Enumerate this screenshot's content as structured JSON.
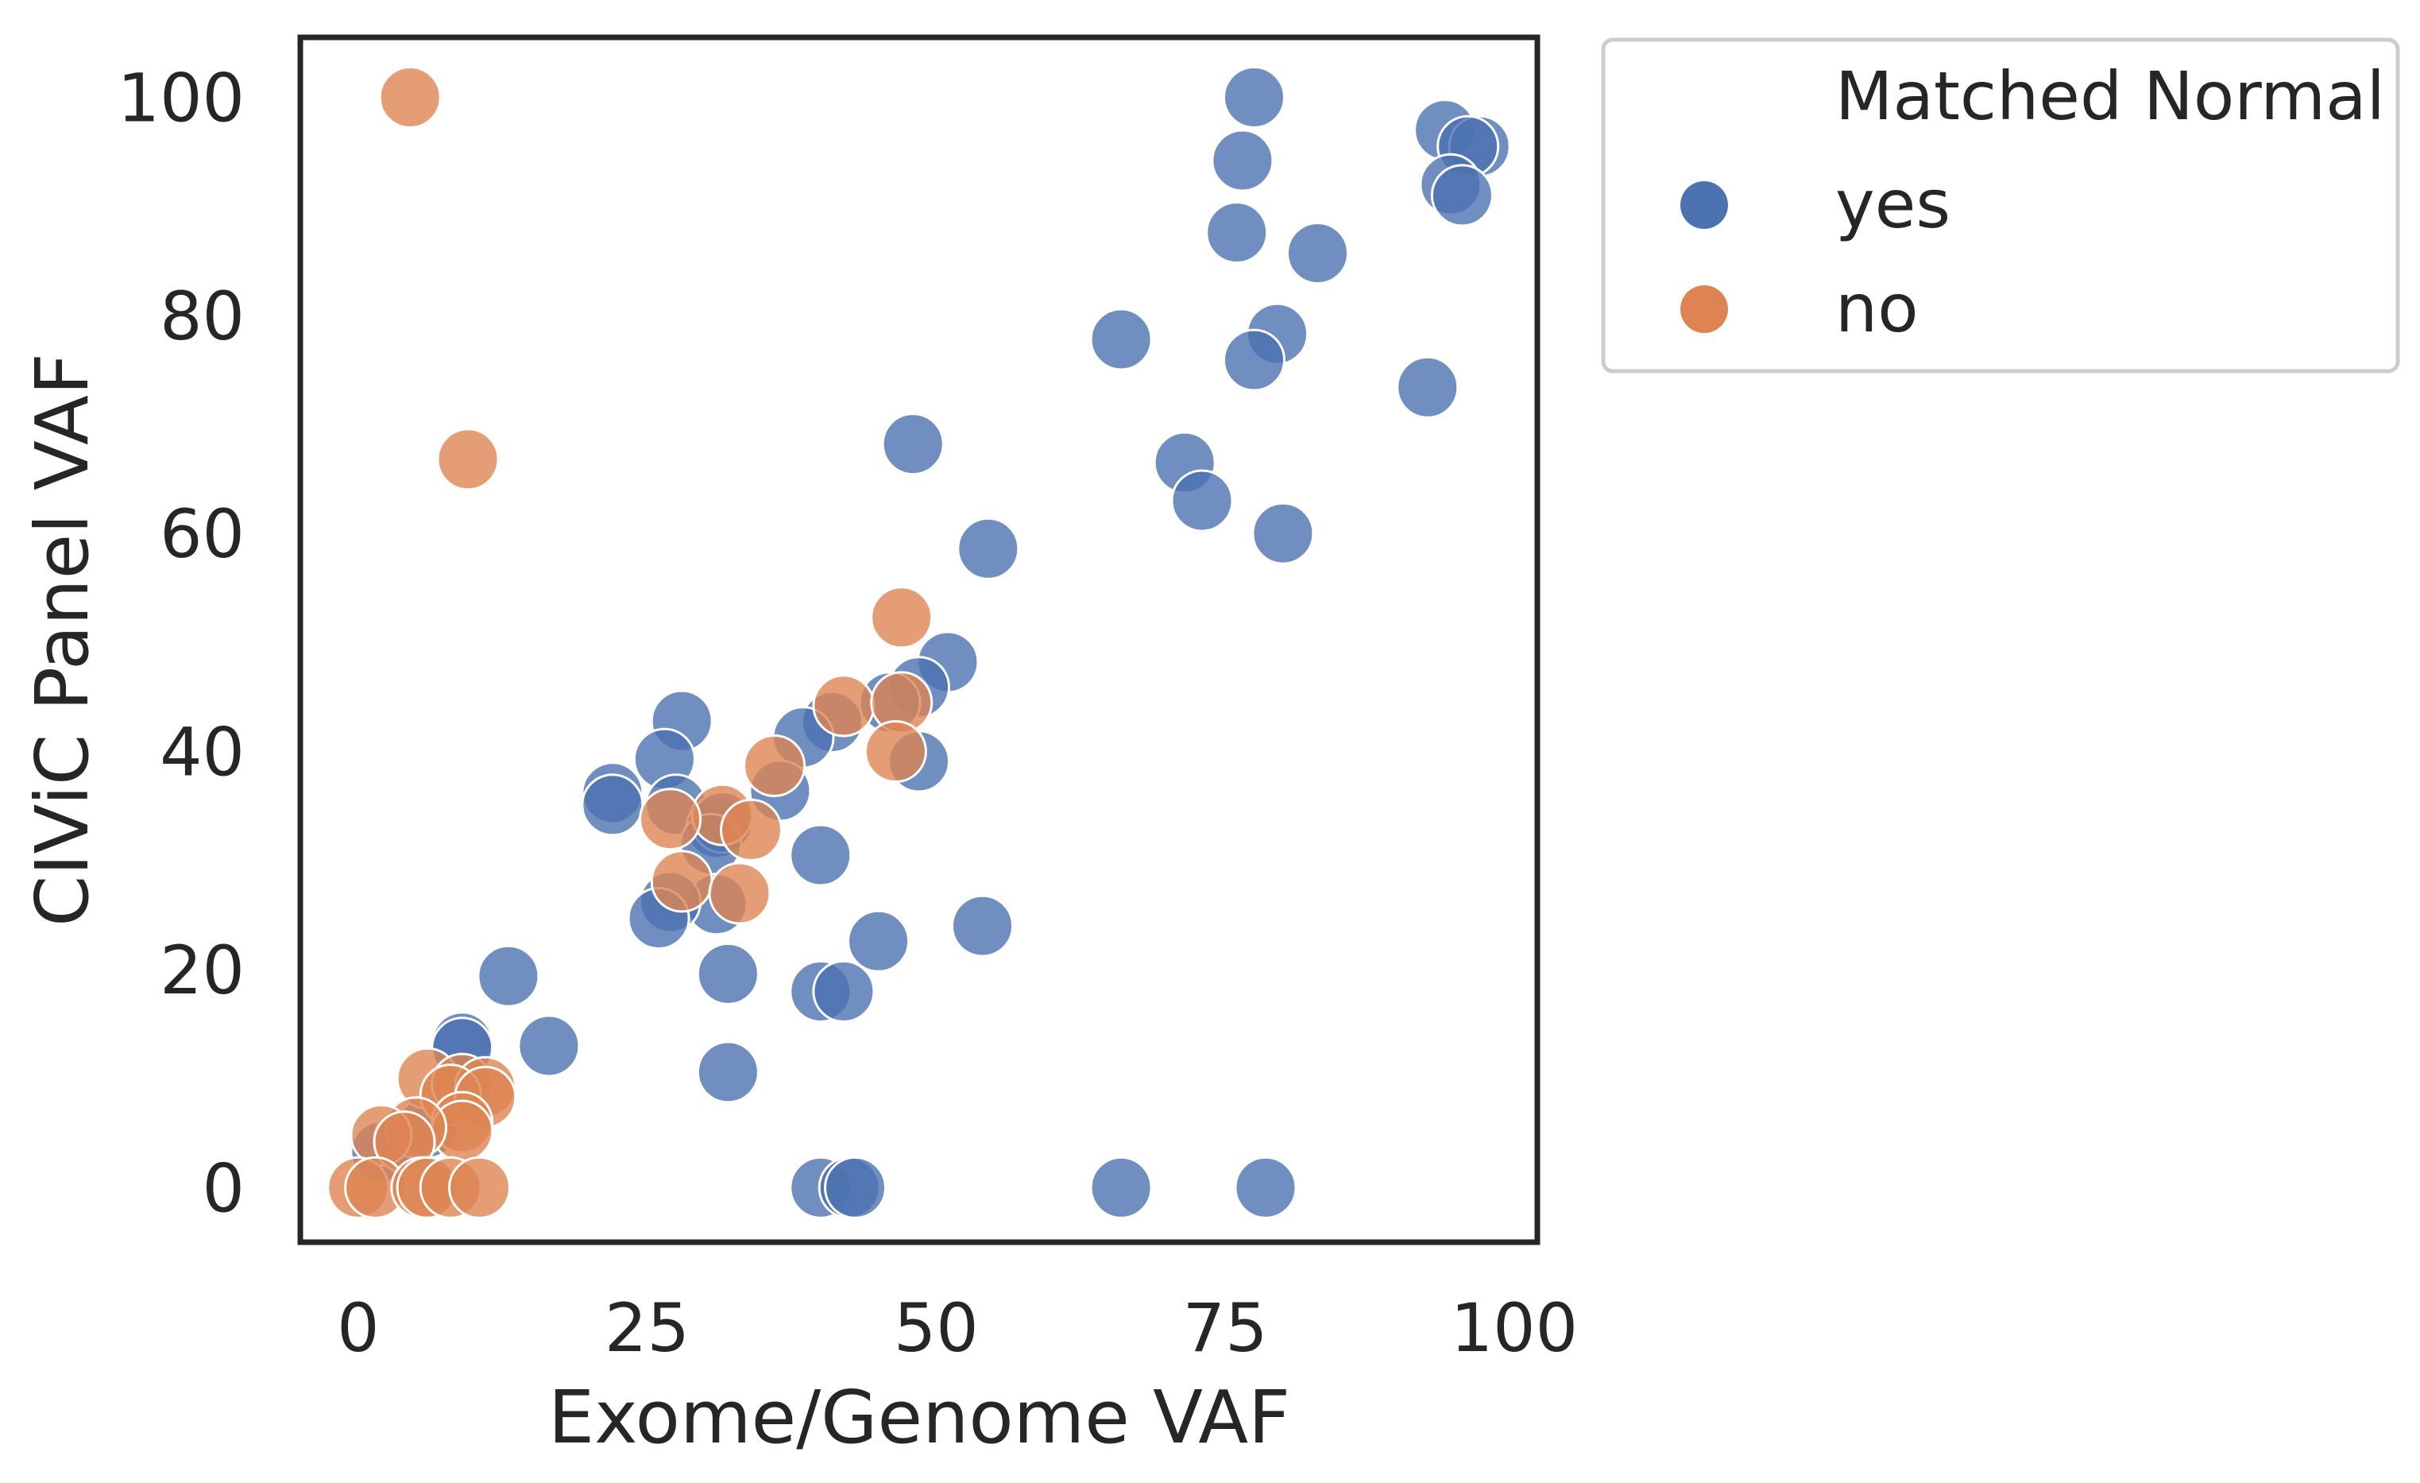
{
  "chart_data": {
    "type": "scatter",
    "title": "",
    "xlabel": "Exome/Genome VAF",
    "ylabel": "CIViC Panel VAF",
    "xlim": [
      -5,
      102
    ],
    "ylim": [
      -5,
      105.5
    ],
    "xticks": [
      0,
      25,
      50,
      75,
      100
    ],
    "yticks": [
      0,
      20,
      40,
      60,
      80,
      100
    ],
    "xtick_labels": [
      "0",
      "25",
      "50",
      "75",
      "100"
    ],
    "ytick_labels": [
      "0",
      "20",
      "40",
      "60",
      "80",
      "100"
    ],
    "grid": false,
    "legend": {
      "title": "Matched Normal",
      "placement": "outside top-right",
      "entries": [
        {
          "label": "yes",
          "color": "#4c72b0"
        },
        {
          "label": "no",
          "color": "#dd8452"
        }
      ]
    },
    "series": [
      {
        "name": "yes",
        "color": "#4c72b0",
        "points": [
          [
            77.5,
            100
          ],
          [
            94,
            97
          ],
          [
            97,
            95.5
          ],
          [
            96,
            95.5
          ],
          [
            76.5,
            94.2
          ],
          [
            94.5,
            92
          ],
          [
            95.5,
            91
          ],
          [
            76,
            87.6
          ],
          [
            83,
            85.7
          ],
          [
            79.5,
            78.3
          ],
          [
            66,
            77.8
          ],
          [
            77.5,
            75.9
          ],
          [
            92.5,
            73.4
          ],
          [
            48,
            68.2
          ],
          [
            71.5,
            66.5
          ],
          [
            73,
            63
          ],
          [
            80,
            60
          ],
          [
            54.5,
            58.6
          ],
          [
            51,
            48.2
          ],
          [
            48.5,
            45.9
          ],
          [
            46,
            44.5
          ],
          [
            28,
            42.8
          ],
          [
            41,
            42.7
          ],
          [
            38.5,
            41.3
          ],
          [
            26.5,
            39.3
          ],
          [
            48.5,
            39.1
          ],
          [
            36.5,
            36.4
          ],
          [
            22,
            36.2
          ],
          [
            22,
            35.1
          ],
          [
            27.5,
            35.1
          ],
          [
            31,
            33
          ],
          [
            31.5,
            33.5
          ],
          [
            30.5,
            31.5
          ],
          [
            40,
            30.5
          ],
          [
            31,
            26
          ],
          [
            27,
            26.2
          ],
          [
            26,
            24.7
          ],
          [
            54,
            24
          ],
          [
            45,
            22.6
          ],
          [
            32,
            19.6
          ],
          [
            13,
            19.4
          ],
          [
            40,
            18
          ],
          [
            42,
            18
          ],
          [
            9,
            13.3
          ],
          [
            9,
            12.8
          ],
          [
            16.5,
            13
          ],
          [
            32,
            10.6
          ],
          [
            2,
            3.3
          ],
          [
            4,
            4.5
          ],
          [
            6,
            5.5
          ],
          [
            40,
            0
          ],
          [
            42.5,
            0
          ],
          [
            43,
            0
          ],
          [
            66,
            0
          ],
          [
            78.5,
            0
          ]
        ]
      },
      {
        "name": "no",
        "color": "#dd8452",
        "points": [
          [
            4.5,
            100
          ],
          [
            9.5,
            66.8
          ],
          [
            47,
            52.3
          ],
          [
            42,
            44.2
          ],
          [
            47,
            44.5
          ],
          [
            36,
            38.7
          ],
          [
            46.5,
            40
          ],
          [
            31.5,
            34.2
          ],
          [
            27,
            33.8
          ],
          [
            34,
            32.8
          ],
          [
            28,
            28.1
          ],
          [
            33,
            27
          ],
          [
            6,
            10
          ],
          [
            9,
            9.5
          ],
          [
            11,
            9.2
          ],
          [
            8,
            8.5
          ],
          [
            11,
            8.3
          ],
          [
            9,
            6
          ],
          [
            9,
            5.2
          ],
          [
            5,
            5.5
          ],
          [
            2,
            4.8
          ],
          [
            4,
            4.2
          ],
          [
            0,
            0
          ],
          [
            1.5,
            0
          ],
          [
            5.5,
            0
          ],
          [
            6,
            0
          ],
          [
            8,
            0
          ],
          [
            10.5,
            0
          ]
        ]
      }
    ]
  }
}
